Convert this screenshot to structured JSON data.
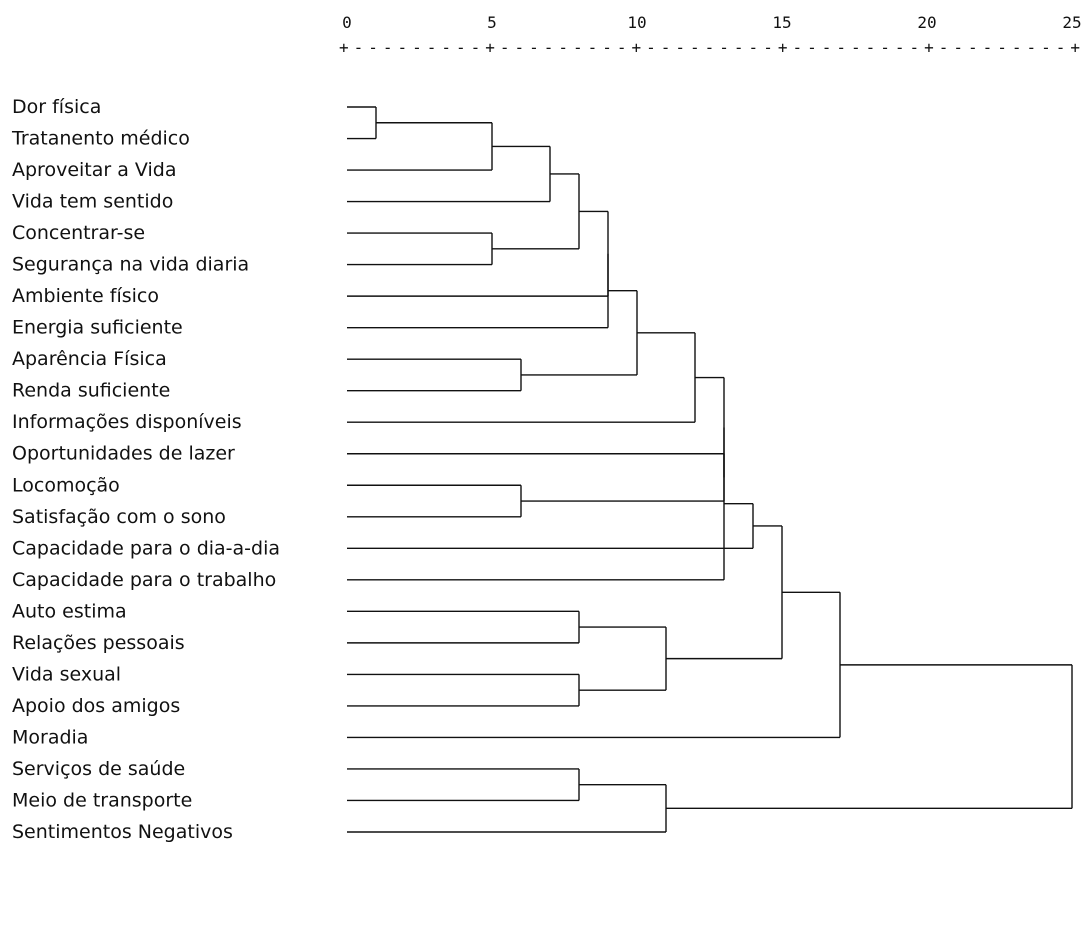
{
  "chart_data": {
    "type": "dendrogram",
    "xlim": [
      0,
      25
    ],
    "ticks": [
      "0",
      "5",
      "10",
      "15",
      "20",
      "25"
    ],
    "ruler": "+---------+---------+---------+---------+---------+",
    "leaves": [
      "Dor física",
      "Tratanento médico",
      "Aproveitar a Vida",
      "Vida tem sentido",
      "Concentrar-se",
      "Segurança na vida diaria",
      "Ambiente físico",
      "Energia suficiente",
      "Aparência Física",
      "Renda suficiente",
      "Informações disponíveis",
      "Oportunidades de lazer",
      "Locomoção",
      "Satisfação com o sono",
      "Capacidade para o dia-a-dia",
      "Capacidade para o trabalho",
      "Auto estima",
      "Relações pessoais",
      "Vida sexual",
      "Apoio dos amigos",
      "Moradia",
      "Serviços de saúde",
      "Meio de transporte",
      "Sentimentos Negativos"
    ],
    "merges": [
      {
        "a": 0,
        "b": 1,
        "distance": 1.0
      },
      {
        "a": 24,
        "b": 2,
        "distance": 5.0
      },
      {
        "a": 4,
        "b": 5,
        "distance": 5.0
      },
      {
        "a": 25,
        "b": 3,
        "distance": 7.0
      },
      {
        "a": 27,
        "b": 26,
        "distance": 8.0
      },
      {
        "a": 28,
        "b": 6,
        "distance": 9.0
      },
      {
        "a": 29,
        "b": 7,
        "distance": 9.0
      },
      {
        "a": 8,
        "b": 9,
        "distance": 6.0
      },
      {
        "a": 30,
        "b": 31,
        "distance": 10.0
      },
      {
        "a": 32,
        "b": 10,
        "distance": 12.0
      },
      {
        "a": 12,
        "b": 13,
        "distance": 6.0
      },
      {
        "a": 34,
        "b": 11,
        "distance": 13.0
      },
      {
        "a": 33,
        "b": 35,
        "distance": 13.0
      },
      {
        "a": 36,
        "b": 15,
        "distance": 13.0
      },
      {
        "a": 37,
        "b": 14,
        "distance": 14.0
      },
      {
        "a": 16,
        "b": 17,
        "distance": 8.0
      },
      {
        "a": 18,
        "b": 19,
        "distance": 8.0
      },
      {
        "a": 39,
        "b": 40,
        "distance": 11.0
      },
      {
        "a": 38,
        "b": 41,
        "distance": 15.0
      },
      {
        "a": 42,
        "b": 20,
        "distance": 17.0
      },
      {
        "a": 21,
        "b": 22,
        "distance": 8.0
      },
      {
        "a": 44,
        "b": 23,
        "distance": 11.0
      },
      {
        "a": 43,
        "b": 45,
        "distance": 25.0
      }
    ]
  }
}
